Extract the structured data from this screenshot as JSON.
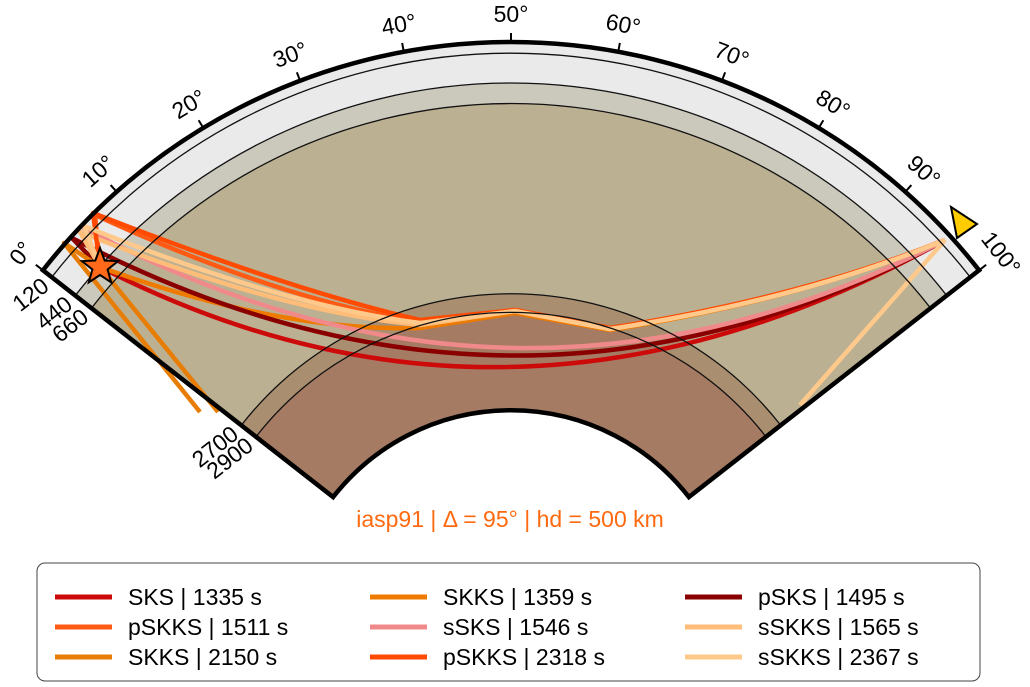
{
  "figure": {
    "angle_ticks": [
      {
        "value": 0,
        "label": "0°"
      },
      {
        "value": 10,
        "label": "10°"
      },
      {
        "value": 20,
        "label": "20°"
      },
      {
        "value": 30,
        "label": "30°"
      },
      {
        "value": 40,
        "label": "40°"
      },
      {
        "value": 50,
        "label": "50°"
      },
      {
        "value": 60,
        "label": "60°"
      },
      {
        "value": 70,
        "label": "70°"
      },
      {
        "value": 80,
        "label": "80°"
      },
      {
        "value": 90,
        "label": "90°"
      },
      {
        "value": 100,
        "label": "100°"
      }
    ],
    "depth_labels": [
      120,
      440,
      660,
      2700,
      2900
    ],
    "caption": "iasp91 | Δ = 95° | hd = 500 km",
    "legend": [
      {
        "label": "SKS | 1335 s",
        "color": "#cc0a0a"
      },
      {
        "label": "SKKS | 1359 s",
        "color": "#ee7a00"
      },
      {
        "label": "pSKS | 1495 s",
        "color": "#8a0000"
      },
      {
        "label": "pSKKS | 1511 s",
        "color": "#ff5a14"
      },
      {
        "label": "sSKS | 1546 s",
        "color": "#f08a8a"
      },
      {
        "label": "sSKKS | 1565 s",
        "color": "#ffbd7a"
      },
      {
        "label": "SKKS | 2150 s",
        "color": "#e87d05"
      },
      {
        "label": "pSKKS | 2318 s",
        "color": "#ff4a00"
      },
      {
        "label": "sSKKS | 2367 s",
        "color": "#ffc98c"
      }
    ]
  }
}
